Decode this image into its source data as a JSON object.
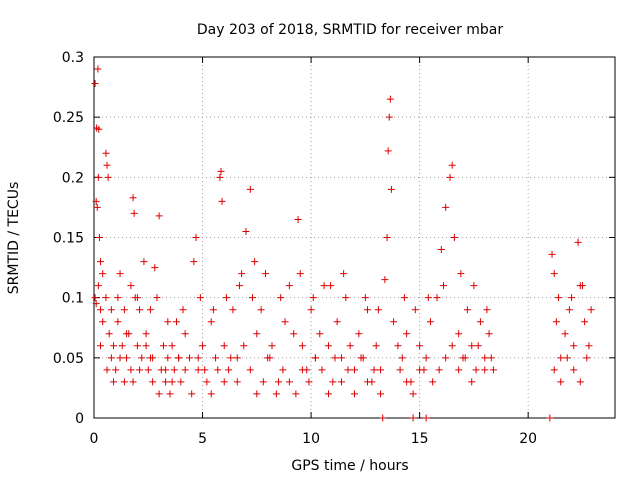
{
  "chart_data": {
    "type": "scatter",
    "title": "Day 203 of 2018, SRMTID for receiver mbar",
    "xlabel": "GPS time / hours",
    "ylabel": "SRMTID / TECUs",
    "xlim": [
      0,
      24
    ],
    "ylim": [
      0,
      0.3
    ],
    "xticks": [
      0,
      5,
      10,
      15,
      20
    ],
    "yticks": [
      0,
      0.05,
      0.1,
      0.15,
      0.2,
      0.25,
      0.3
    ],
    "xtick_labels": [
      "0",
      "5",
      "10",
      "15",
      "20"
    ],
    "ytick_labels": [
      "0",
      "0.05",
      "0.1",
      "0.15",
      "0.2",
      "0.25",
      "0.3"
    ],
    "grid": true,
    "colors": {
      "points": "#dd0000",
      "grid": "#a0a0a0",
      "axis": "#000000"
    },
    "series": [
      {
        "name": "SRMTID",
        "marker": "plus",
        "points": [
          [
            0.05,
            0.278
          ],
          [
            0.12,
            0.241
          ],
          [
            0.18,
            0.29
          ],
          [
            0.22,
            0.24
          ],
          [
            0.1,
            0.18
          ],
          [
            0.15,
            0.175
          ],
          [
            0.2,
            0.2
          ],
          [
            0.25,
            0.15
          ],
          [
            0.3,
            0.13
          ],
          [
            0.05,
            0.1
          ],
          [
            0.1,
            0.095
          ],
          [
            0.2,
            0.11
          ],
          [
            0.3,
            0.09
          ],
          [
            0.4,
            0.08
          ],
          [
            0.55,
            0.22
          ],
          [
            0.6,
            0.21
          ],
          [
            0.65,
            0.2
          ],
          [
            0.55,
            0.1
          ],
          [
            0.7,
            0.07
          ],
          [
            0.8,
            0.05
          ],
          [
            0.9,
            0.06
          ],
          [
            1.0,
            0.04
          ],
          [
            1.1,
            0.08
          ],
          [
            1.2,
            0.12
          ],
          [
            1.3,
            0.06
          ],
          [
            1.4,
            0.03
          ],
          [
            1.5,
            0.05
          ],
          [
            1.6,
            0.07
          ],
          [
            1.7,
            0.04
          ],
          [
            1.8,
            0.183
          ],
          [
            1.85,
            0.17
          ],
          [
            1.9,
            0.1
          ],
          [
            2.0,
            0.06
          ],
          [
            2.1,
            0.09
          ],
          [
            2.2,
            0.05
          ],
          [
            2.3,
            0.13
          ],
          [
            2.4,
            0.07
          ],
          [
            2.5,
            0.04
          ],
          [
            2.6,
            0.05
          ],
          [
            2.7,
            0.03
          ],
          [
            2.8,
            0.125
          ],
          [
            2.9,
            0.1
          ],
          [
            3.0,
            0.168
          ],
          [
            3.1,
            0.04
          ],
          [
            3.2,
            0.06
          ],
          [
            3.3,
            0.03
          ],
          [
            3.4,
            0.05
          ],
          [
            3.5,
            0.02
          ],
          [
            3.6,
            0.06
          ],
          [
            3.7,
            0.04
          ],
          [
            3.8,
            0.08
          ],
          [
            3.9,
            0.05
          ],
          [
            4.0,
            0.03
          ],
          [
            4.2,
            0.07
          ],
          [
            4.4,
            0.05
          ],
          [
            4.6,
            0.13
          ],
          [
            4.7,
            0.15
          ],
          [
            4.8,
            0.04
          ],
          [
            5.0,
            0.06
          ],
          [
            5.2,
            0.03
          ],
          [
            5.4,
            0.08
          ],
          [
            5.6,
            0.05
          ],
          [
            5.8,
            0.2
          ],
          [
            5.85,
            0.205
          ],
          [
            5.9,
            0.18
          ],
          [
            6.0,
            0.06
          ],
          [
            6.2,
            0.04
          ],
          [
            6.4,
            0.09
          ],
          [
            6.6,
            0.05
          ],
          [
            6.8,
            0.12
          ],
          [
            7.0,
            0.155
          ],
          [
            7.2,
            0.19
          ],
          [
            7.3,
            0.1
          ],
          [
            7.5,
            0.07
          ],
          [
            7.7,
            0.09
          ],
          [
            8.0,
            0.05
          ],
          [
            8.2,
            0.06
          ],
          [
            8.5,
            0.03
          ],
          [
            8.8,
            0.08
          ],
          [
            9.0,
            0.11
          ],
          [
            9.2,
            0.07
          ],
          [
            9.4,
            0.165
          ],
          [
            9.6,
            0.06
          ],
          [
            9.8,
            0.04
          ],
          [
            10.0,
            0.09
          ],
          [
            10.2,
            0.05
          ],
          [
            10.4,
            0.07
          ],
          [
            10.6,
            0.11
          ],
          [
            10.8,
            0.06
          ],
          [
            11.0,
            0.03
          ],
          [
            11.2,
            0.08
          ],
          [
            11.4,
            0.05
          ],
          [
            11.6,
            0.1
          ],
          [
            11.8,
            0.06
          ],
          [
            12.0,
            0.04
          ],
          [
            12.2,
            0.07
          ],
          [
            12.4,
            0.05
          ],
          [
            12.6,
            0.09
          ],
          [
            12.8,
            0.03
          ],
          [
            13.0,
            0.06
          ],
          [
            13.2,
            0.04
          ],
          [
            13.4,
            0.115
          ],
          [
            13.5,
            0.15
          ],
          [
            13.55,
            0.222
          ],
          [
            13.6,
            0.25
          ],
          [
            13.65,
            0.265
          ],
          [
            13.7,
            0.19
          ],
          [
            13.8,
            0.08
          ],
          [
            14.0,
            0.06
          ],
          [
            14.2,
            0.05
          ],
          [
            14.4,
            0.07
          ],
          [
            14.6,
            0.03
          ],
          [
            14.8,
            0.09
          ],
          [
            15.0,
            0.06
          ],
          [
            15.2,
            0.04
          ],
          [
            15.5,
            0.08
          ],
          [
            15.8,
            0.1
          ],
          [
            16.0,
            0.14
          ],
          [
            16.2,
            0.175
          ],
          [
            16.4,
            0.2
          ],
          [
            16.5,
            0.21
          ],
          [
            16.6,
            0.15
          ],
          [
            16.8,
            0.07
          ],
          [
            17.0,
            0.05
          ],
          [
            17.2,
            0.09
          ],
          [
            17.4,
            0.06
          ],
          [
            17.6,
            0.04
          ],
          [
            17.8,
            0.08
          ],
          [
            18.0,
            0.05
          ],
          [
            18.2,
            0.07
          ],
          [
            18.4,
            0.04
          ],
          [
            21.1,
            0.136
          ],
          [
            21.2,
            0.12
          ],
          [
            21.3,
            0.08
          ],
          [
            21.5,
            0.05
          ],
          [
            21.7,
            0.07
          ],
          [
            21.9,
            0.09
          ],
          [
            22.1,
            0.06
          ],
          [
            22.3,
            0.146
          ],
          [
            22.4,
            0.11
          ],
          [
            22.6,
            0.08
          ],
          [
            22.8,
            0.06
          ],
          [
            22.9,
            0.09
          ],
          [
            0.3,
            0.06
          ],
          [
            0.6,
            0.04
          ],
          [
            0.9,
            0.03
          ],
          [
            1.2,
            0.05
          ],
          [
            1.5,
            0.07
          ],
          [
            1.8,
            0.03
          ],
          [
            2.1,
            0.04
          ],
          [
            2.4,
            0.06
          ],
          [
            2.7,
            0.05
          ],
          [
            3.0,
            0.02
          ],
          [
            3.3,
            0.04
          ],
          [
            3.6,
            0.03
          ],
          [
            3.9,
            0.05
          ],
          [
            4.2,
            0.04
          ],
          [
            4.5,
            0.02
          ],
          [
            4.8,
            0.05
          ],
          [
            5.1,
            0.04
          ],
          [
            5.4,
            0.02
          ],
          [
            5.7,
            0.04
          ],
          [
            6.0,
            0.03
          ],
          [
            6.3,
            0.05
          ],
          [
            6.6,
            0.03
          ],
          [
            6.9,
            0.06
          ],
          [
            7.2,
            0.04
          ],
          [
            7.5,
            0.02
          ],
          [
            7.8,
            0.03
          ],
          [
            8.1,
            0.05
          ],
          [
            8.4,
            0.02
          ],
          [
            8.7,
            0.04
          ],
          [
            9.0,
            0.03
          ],
          [
            9.3,
            0.02
          ],
          [
            9.6,
            0.04
          ],
          [
            9.9,
            0.03
          ],
          [
            10.2,
            0.05
          ],
          [
            10.5,
            0.04
          ],
          [
            10.8,
            0.02
          ],
          [
            11.1,
            0.05
          ],
          [
            11.4,
            0.03
          ],
          [
            11.7,
            0.04
          ],
          [
            12.0,
            0.02
          ],
          [
            12.3,
            0.05
          ],
          [
            12.6,
            0.03
          ],
          [
            12.9,
            0.04
          ],
          [
            13.2,
            0.02
          ],
          [
            14.1,
            0.04
          ],
          [
            14.4,
            0.03
          ],
          [
            14.7,
            0.02
          ],
          [
            15.0,
            0.04
          ],
          [
            15.3,
            0.05
          ],
          [
            15.6,
            0.03
          ],
          [
            15.9,
            0.04
          ],
          [
            16.2,
            0.05
          ],
          [
            16.5,
            0.06
          ],
          [
            16.8,
            0.04
          ],
          [
            17.1,
            0.05
          ],
          [
            17.4,
            0.03
          ],
          [
            17.7,
            0.06
          ],
          [
            18.0,
            0.04
          ],
          [
            18.3,
            0.05
          ],
          [
            21.2,
            0.04
          ],
          [
            21.5,
            0.03
          ],
          [
            21.8,
            0.05
          ],
          [
            22.1,
            0.04
          ],
          [
            22.4,
            0.03
          ],
          [
            22.7,
            0.05
          ],
          [
            0.4,
            0.12
          ],
          [
            0.8,
            0.09
          ],
          [
            1.1,
            0.1
          ],
          [
            1.4,
            0.09
          ],
          [
            1.7,
            0.11
          ],
          [
            2.0,
            0.1
          ],
          [
            2.6,
            0.09
          ],
          [
            3.4,
            0.08
          ],
          [
            4.1,
            0.09
          ],
          [
            4.9,
            0.1
          ],
          [
            5.5,
            0.09
          ],
          [
            6.1,
            0.1
          ],
          [
            6.7,
            0.11
          ],
          [
            7.4,
            0.13
          ],
          [
            7.9,
            0.12
          ],
          [
            8.6,
            0.1
          ],
          [
            9.5,
            0.12
          ],
          [
            10.1,
            0.1
          ],
          [
            10.9,
            0.11
          ],
          [
            11.5,
            0.12
          ],
          [
            12.5,
            0.1
          ],
          [
            13.1,
            0.09
          ],
          [
            14.3,
            0.1
          ],
          [
            15.4,
            0.1
          ],
          [
            16.1,
            0.11
          ],
          [
            16.9,
            0.12
          ],
          [
            17.5,
            0.11
          ],
          [
            18.1,
            0.09
          ],
          [
            21.4,
            0.1
          ],
          [
            22.0,
            0.1
          ],
          [
            22.5,
            0.11
          ],
          [
            13.3,
            0.0
          ],
          [
            14.7,
            0.0
          ],
          [
            15.3,
            0.0
          ],
          [
            21.0,
            0.0
          ]
        ]
      }
    ]
  }
}
